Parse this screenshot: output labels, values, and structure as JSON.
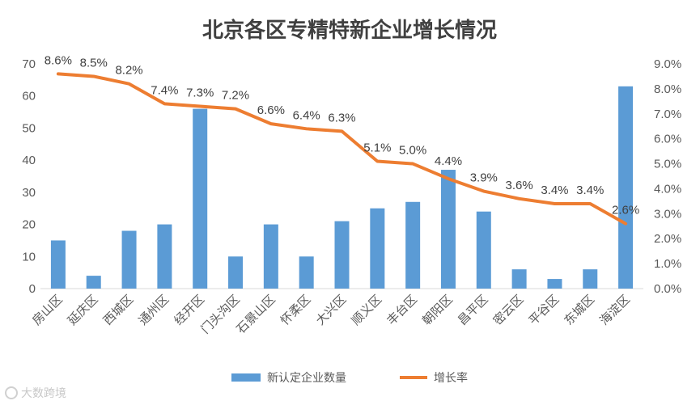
{
  "chart_data": {
    "type": "bar+line",
    "title": "北京各区专精特新企业增长情况",
    "categories": [
      "房山区",
      "延庆区",
      "西城区",
      "通州区",
      "经开区",
      "门头沟区",
      "石景山区",
      "怀柔区",
      "大兴区",
      "顺义区",
      "丰台区",
      "朝阳区",
      "昌平区",
      "密云区",
      "平谷区",
      "东城区",
      "海淀区"
    ],
    "series": [
      {
        "name": "新认定企业数量",
        "type": "bar",
        "axis": "left",
        "color": "#5b9bd5",
        "values": [
          15,
          4,
          18,
          20,
          56,
          10,
          20,
          10,
          21,
          25,
          27,
          37,
          24,
          6,
          3,
          6,
          63
        ]
      },
      {
        "name": "增长率",
        "type": "line",
        "axis": "right",
        "color": "#ed7d31",
        "values": [
          8.6,
          8.5,
          8.2,
          7.4,
          7.3,
          7.2,
          6.6,
          6.4,
          6.3,
          5.1,
          5.0,
          4.4,
          3.9,
          3.6,
          3.4,
          3.4,
          2.6
        ],
        "labels": [
          "8.6%",
          "8.5%",
          "8.2%",
          "7.4%",
          "7.3%",
          "7.2%",
          "6.6%",
          "6.4%",
          "6.3%",
          "5.1%",
          "5.0%",
          "4.4%",
          "3.9%",
          "3.6%",
          "3.4%",
          "3.4%",
          "2.6%"
        ]
      }
    ],
    "y_left": {
      "min": 0,
      "max": 70,
      "step": 10,
      "ticks": [
        "0",
        "10",
        "20",
        "30",
        "40",
        "50",
        "60",
        "70"
      ]
    },
    "y_right": {
      "min": 0,
      "max": 9,
      "step": 1,
      "ticks": [
        "0.0%",
        "1.0%",
        "2.0%",
        "3.0%",
        "4.0%",
        "5.0%",
        "6.0%",
        "7.0%",
        "8.0%",
        "9.0%"
      ]
    },
    "grid": false,
    "legend_position": "bottom"
  },
  "watermark": "大数跨境"
}
